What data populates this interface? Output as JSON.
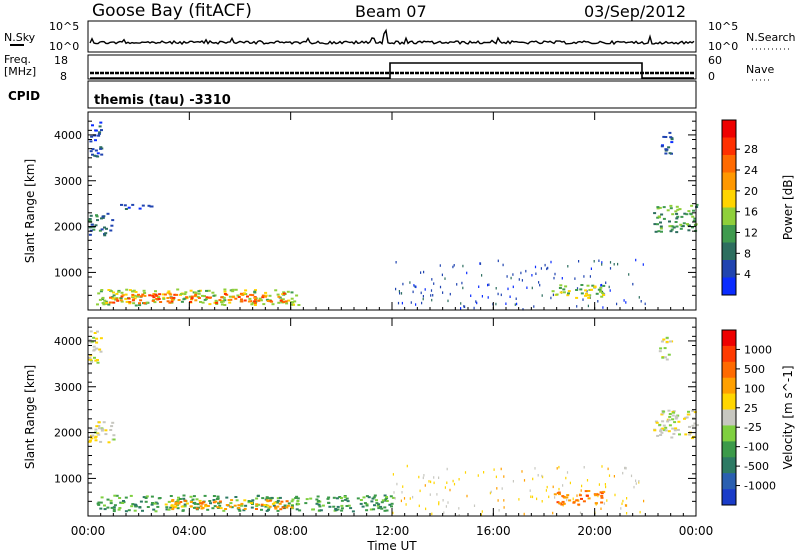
{
  "header": {
    "station": "Goose Bay (fitACF)",
    "beam": "Beam 07",
    "date": "03/Sep/2012"
  },
  "panels": {
    "nsky_label": "N.Sky",
    "nsky_ticks": [
      "10^5",
      "10^0"
    ],
    "nsearch_label": "N.Search",
    "nsearch_ticks": [
      "10^5",
      "10^0"
    ],
    "freq_label": "Freq.",
    "freq_unit": "[MHz]",
    "freq_ticks": [
      "18",
      "8"
    ],
    "nave_label": "Nave",
    "nave_ticks": [
      "60",
      "0"
    ],
    "cpid_label": "CPID",
    "cpid_value": "themis (tau) -3310"
  },
  "chart_data": [
    {
      "type": "heatmap",
      "name": "power",
      "ylabel": "Slant Range [km]",
      "yticks": [
        1000,
        2000,
        3000,
        4000
      ],
      "ylim": [
        180,
        4500
      ],
      "xlim_hours": [
        0,
        24
      ],
      "colorbar": {
        "label": "Power [dB]",
        "ticks": [
          "4",
          "8",
          "12",
          "16",
          "20",
          "24",
          "28"
        ],
        "colors": [
          "#0a2cff",
          "#2044b0",
          "#2d6e5f",
          "#3f9a4e",
          "#8fcf3a",
          "#ffd400",
          "#ff9800",
          "#ff6a00",
          "#ff3000",
          "#ee0000"
        ]
      },
      "regions": [
        {
          "t0": 0.0,
          "t1": 0.5,
          "r0": 3500,
          "r1": 4300,
          "level": 1
        },
        {
          "t0": 0.0,
          "t1": 1.0,
          "r0": 1800,
          "r1": 2300,
          "level": 2
        },
        {
          "t0": 1.0,
          "t1": 2.5,
          "r0": 2400,
          "r1": 2500,
          "level": 1
        },
        {
          "t0": 0.3,
          "t1": 8.3,
          "r0": 300,
          "r1": 650,
          "level": 4
        },
        {
          "t0": 0.8,
          "t1": 7.8,
          "r0": 350,
          "r1": 560,
          "level": 7
        },
        {
          "t0": 12.0,
          "t1": 22.0,
          "r0": 220,
          "r1": 1300,
          "level": 1
        },
        {
          "t0": 18.3,
          "t1": 20.3,
          "r0": 450,
          "r1": 750,
          "level": 4
        },
        {
          "t0": 22.3,
          "t1": 24.0,
          "r0": 1900,
          "r1": 2500,
          "level": 3
        },
        {
          "t0": 22.5,
          "t1": 23.0,
          "r0": 3600,
          "r1": 4100,
          "level": 1
        }
      ]
    },
    {
      "type": "heatmap",
      "name": "velocity",
      "ylabel": "Slant Range [km]",
      "yticks": [
        1000,
        2000,
        3000,
        4000
      ],
      "ylim": [
        180,
        4500
      ],
      "xlim_hours": [
        0,
        24
      ],
      "xticks": [
        "00:00",
        "04:00",
        "08:00",
        "12:00",
        "16:00",
        "20:00",
        "00:00"
      ],
      "xlabel": "Time UT",
      "colorbar": {
        "label": "Velocity [m s^-1]",
        "ticks": [
          "1000",
          "500",
          "100",
          "25",
          "-25",
          "-100",
          "-500",
          "-1000"
        ],
        "colors": [
          "#1a3cc8",
          "#2a5fb0",
          "#2d7a64",
          "#3c9a4a",
          "#7fd040",
          "#c7c7c0",
          "#ffd600",
          "#ffa000",
          "#ff6a00",
          "#ff3a00",
          "#ee0000"
        ]
      },
      "regions": [
        {
          "t0": 0.0,
          "t1": 0.5,
          "r0": 3500,
          "r1": 4300,
          "level": 5
        },
        {
          "t0": 0.0,
          "t1": 1.0,
          "r0": 1800,
          "r1": 2300,
          "level": 5
        },
        {
          "t0": 0.3,
          "t1": 12.0,
          "r0": 300,
          "r1": 650,
          "level": 3
        },
        {
          "t0": 3.0,
          "t1": 8.0,
          "r0": 350,
          "r1": 560,
          "level": 7
        },
        {
          "t0": 12.0,
          "t1": 22.0,
          "r0": 220,
          "r1": 1300,
          "level": 6
        },
        {
          "t0": 18.3,
          "t1": 20.3,
          "r0": 450,
          "r1": 750,
          "level": 8
        },
        {
          "t0": 22.3,
          "t1": 24.0,
          "r0": 1900,
          "r1": 2500,
          "level": 5
        },
        {
          "t0": 22.5,
          "t1": 23.0,
          "r0": 3600,
          "r1": 4100,
          "level": 5
        }
      ]
    }
  ]
}
